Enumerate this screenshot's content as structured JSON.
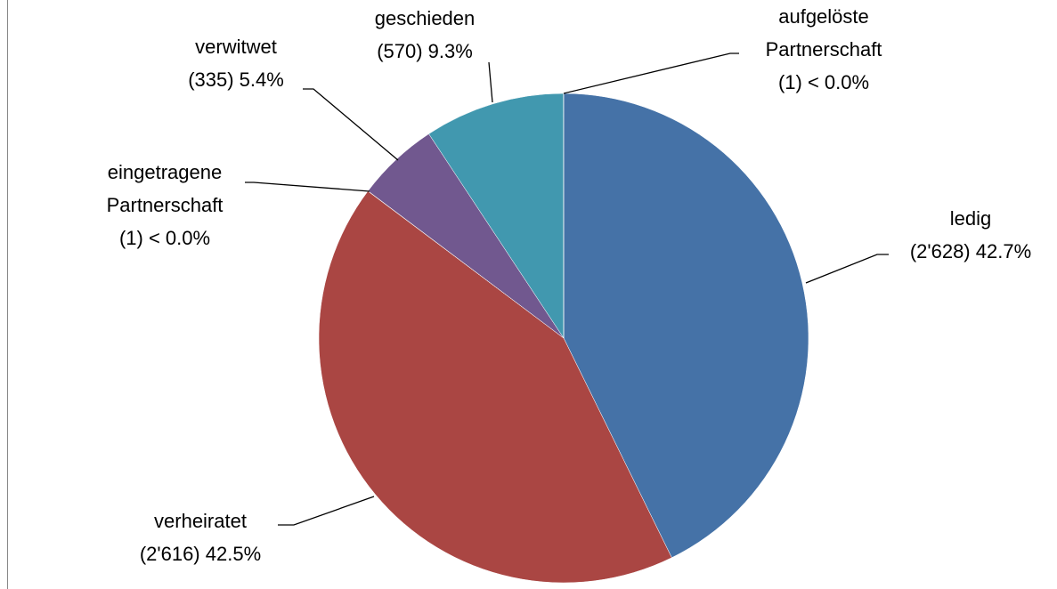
{
  "chart_data": {
    "type": "pie",
    "categories": [
      "ledig",
      "verheiratet",
      "eingetragene Partnerschaft",
      "verwitwet",
      "geschieden",
      "aufgelöste Partnerschaft"
    ],
    "values": [
      2628,
      2616,
      1,
      335,
      570,
      1
    ],
    "value_labels": [
      "(2'628) 42.7%",
      "(2'616) 42.5%",
      "(1) < 0.0%",
      "(335) 5.4%",
      "(570) 9.3%",
      "(1) < 0.0%"
    ],
    "colors": [
      "#4572a7",
      "#aa4643",
      "#89a54e",
      "#71588f",
      "#4198af",
      "#db843d"
    ]
  }
}
